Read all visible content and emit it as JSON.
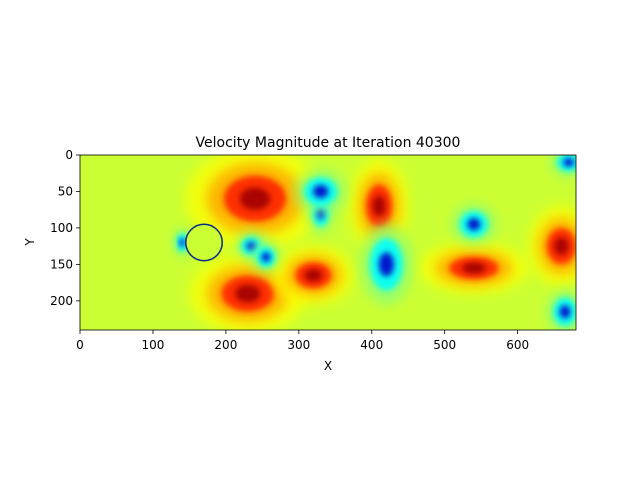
{
  "chart_data": {
    "type": "heatmap",
    "title": "Velocity Magnitude at Iteration 40300",
    "xlabel": "X",
    "ylabel": "Y",
    "xlim": [
      0,
      680
    ],
    "ylim": [
      240,
      0
    ],
    "y_axis_inverted": true,
    "x_ticks": [
      0,
      100,
      200,
      300,
      400,
      500,
      600
    ],
    "y_ticks": [
      0,
      50,
      100,
      150,
      200
    ],
    "grid": false,
    "legend": "none",
    "colormap": "jet",
    "obstacle": {
      "shape": "circle",
      "center": [
        170,
        120
      ],
      "radius": 25
    },
    "field_features": [
      {
        "label": "high",
        "x": 240,
        "y": 60,
        "rx": 95,
        "ry": 70
      },
      {
        "label": "high",
        "x": 230,
        "y": 190,
        "rx": 80,
        "ry": 55
      },
      {
        "label": "high",
        "x": 320,
        "y": 165,
        "rx": 55,
        "ry": 40
      },
      {
        "label": "high",
        "x": 410,
        "y": 70,
        "rx": 40,
        "ry": 65
      },
      {
        "label": "high",
        "x": 540,
        "y": 155,
        "rx": 75,
        "ry": 35
      },
      {
        "label": "high",
        "x": 660,
        "y": 125,
        "rx": 45,
        "ry": 55
      },
      {
        "label": "low",
        "x": 140,
        "y": 120,
        "rx": 12,
        "ry": 20
      },
      {
        "label": "low",
        "x": 235,
        "y": 125,
        "rx": 22,
        "ry": 20
      },
      {
        "label": "low",
        "x": 255,
        "y": 140,
        "rx": 20,
        "ry": 22
      },
      {
        "label": "low",
        "x": 330,
        "y": 80,
        "rx": 18,
        "ry": 28
      },
      {
        "label": "low",
        "x": 330,
        "y": 50,
        "rx": 35,
        "ry": 30
      },
      {
        "label": "low",
        "x": 420,
        "y": 150,
        "rx": 35,
        "ry": 55
      },
      {
        "label": "low",
        "x": 540,
        "y": 95,
        "rx": 30,
        "ry": 28
      },
      {
        "label": "low",
        "x": 665,
        "y": 215,
        "rx": 25,
        "ry": 30
      },
      {
        "label": "low",
        "x": 670,
        "y": 10,
        "rx": 25,
        "ry": 20
      }
    ],
    "colors": {
      "background": "#ccff33",
      "very_high": "#a00000",
      "high": "#ff2000",
      "medium_high": "#ffaa00",
      "medium": "#ffff00",
      "medium_low": "#80ff80",
      "low": "#00ffff",
      "very_low": "#0000cc"
    }
  }
}
